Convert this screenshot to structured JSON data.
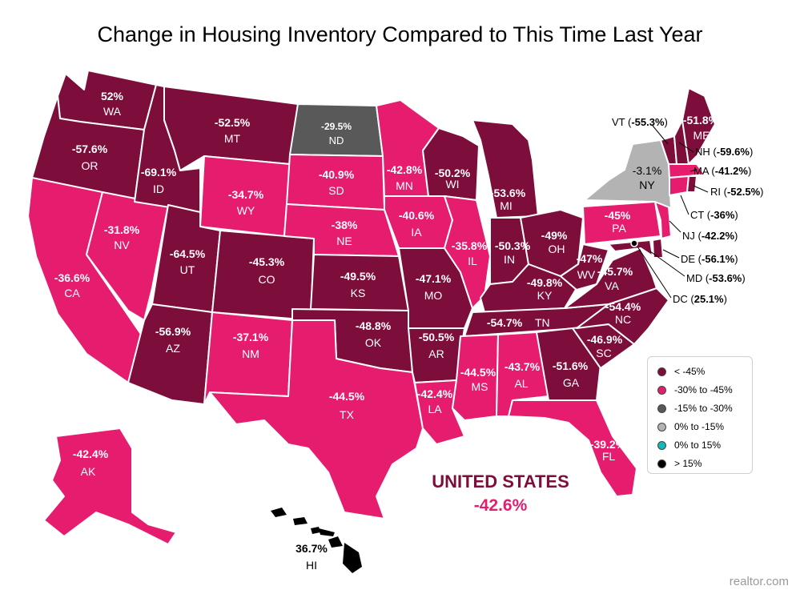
{
  "title": "Change in Housing Inventory Compared to This Time Last Year",
  "colors": {
    "lt_neg45": "#7d0d3b",
    "neg30_neg45": "#e61d6e",
    "neg15_neg30": "#595959",
    "zero_neg15": "#b3b3b3",
    "zero_15": "#15b8b8",
    "gt15": "#000000"
  },
  "states": {
    "WA": {
      "value": "52%",
      "abbr": "WA"
    },
    "OR": {
      "value": "-57.6%",
      "abbr": "OR"
    },
    "CA": {
      "value": "-36.6%",
      "abbr": "CA"
    },
    "NV": {
      "value": "-31.8%",
      "abbr": "NV"
    },
    "ID": {
      "value": "-69.1%",
      "abbr": "ID"
    },
    "MT": {
      "value": "-52.5%",
      "abbr": "MT"
    },
    "WY": {
      "value": "-34.7%",
      "abbr": "WY"
    },
    "UT": {
      "value": "-64.5%",
      "abbr": "UT"
    },
    "AZ": {
      "value": "-56.9%",
      "abbr": "AZ"
    },
    "CO": {
      "value": "-45.3%",
      "abbr": "CO"
    },
    "NM": {
      "value": "-37.1%",
      "abbr": "NM"
    },
    "ND": {
      "value": "-29.5%",
      "abbr": "ND"
    },
    "SD": {
      "value": "-40.9%",
      "abbr": "SD"
    },
    "NE": {
      "value": "-38%",
      "abbr": "NE"
    },
    "KS": {
      "value": "-49.5%",
      "abbr": "KS"
    },
    "OK": {
      "value": "-48.8%",
      "abbr": "OK"
    },
    "TX": {
      "value": "-44.5%",
      "abbr": "TX"
    },
    "MN": {
      "value": "-42.8%",
      "abbr": "MN"
    },
    "IA": {
      "value": "-40.6%",
      "abbr": "IA"
    },
    "MO": {
      "value": "-47.1%",
      "abbr": "MO"
    },
    "AR": {
      "value": "-50.5%",
      "abbr": "AR"
    },
    "LA": {
      "value": "-42.4%",
      "abbr": "LA"
    },
    "WI": {
      "value": "-50.2%",
      "abbr": "WI"
    },
    "IL": {
      "value": "-35.8%",
      "abbr": "IL"
    },
    "MI": {
      "value": "-53.6%",
      "abbr": "MI"
    },
    "IN": {
      "value": "-50.3%",
      "abbr": "IN"
    },
    "OH": {
      "value": "-49%",
      "abbr": "OH"
    },
    "KY": {
      "value": "-49.8%",
      "abbr": "KY"
    },
    "TN": {
      "value": "-54.7%",
      "abbr": "TN"
    },
    "MS": {
      "value": "-44.5%",
      "abbr": "MS"
    },
    "AL": {
      "value": "-43.7%",
      "abbr": "AL"
    },
    "GA": {
      "value": "-51.6%",
      "abbr": "GA"
    },
    "FL": {
      "value": "-39.2%",
      "abbr": "FL"
    },
    "SC": {
      "value": "-46.9%",
      "abbr": "SC"
    },
    "NC": {
      "value": "-54.4%",
      "abbr": "NC"
    },
    "VA": {
      "value": "-45.7%",
      "abbr": "VA"
    },
    "WV": {
      "value": "-47%",
      "abbr": "WV"
    },
    "PA": {
      "value": "-45%",
      "abbr": "PA"
    },
    "NY": {
      "value": "-3.1%",
      "abbr": "NY"
    },
    "ME": {
      "value": "-51.8%",
      "abbr": "ME"
    },
    "AK": {
      "value": "-42.4%",
      "abbr": "AK"
    },
    "HI": {
      "value": "36.7%",
      "abbr": "HI"
    }
  },
  "callouts": {
    "VT": {
      "abbr": "VT",
      "value": "-55.3%"
    },
    "NH": {
      "abbr": "NH",
      "value": "-59.6%"
    },
    "MA": {
      "abbr": "MA",
      "value": "-41.2%"
    },
    "RI": {
      "abbr": "RI",
      "value": "-52.5%"
    },
    "CT": {
      "abbr": "CT",
      "value": "-36%"
    },
    "NJ": {
      "abbr": "NJ",
      "value": "-42.2%"
    },
    "DE": {
      "abbr": "DE",
      "value": "-56.1%"
    },
    "MD": {
      "abbr": "MD",
      "value": "-53.6%"
    },
    "DC": {
      "abbr": "DC",
      "value": "25.1%"
    }
  },
  "legend": [
    {
      "label": "< -45%",
      "color": "#7d0d3b"
    },
    {
      "label": "-30% to -45%",
      "color": "#e61d6e"
    },
    {
      "label": "-15% to -30%",
      "color": "#595959"
    },
    {
      "label": "0% to -15%",
      "color": "#b3b3b3"
    },
    {
      "label": "0% to 15%",
      "color": "#15b8b8"
    },
    {
      "label": "> 15%",
      "color": "#000000"
    }
  ],
  "national": {
    "label": "UNITED STATES",
    "value": "-42.6%"
  },
  "credit": "realtor.com"
}
